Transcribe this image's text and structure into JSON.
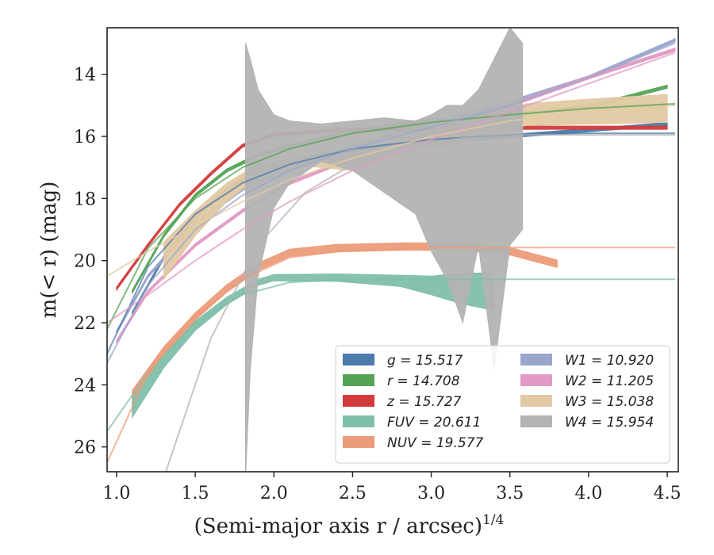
{
  "chart_data": {
    "type": "line",
    "xlabel": "(Semi-major axis r / arcsec)",
    "xlabel_sup": "1/4",
    "ylabel": "m(< r) (mag)",
    "xlim": [
      0.94,
      4.57
    ],
    "ylim": [
      12.5,
      26.8
    ],
    "y_inverted": true,
    "x_ticks": [
      {
        "value": 1.0,
        "label": "1.0"
      },
      {
        "value": 1.5,
        "label": "1.5"
      },
      {
        "value": 2.0,
        "label": "2.0"
      },
      {
        "value": 2.5,
        "label": "2.5"
      },
      {
        "value": 3.0,
        "label": "3.0"
      },
      {
        "value": 3.5,
        "label": "3.5"
      },
      {
        "value": 4.0,
        "label": "4.0"
      },
      {
        "value": 4.5,
        "label": "4.5"
      }
    ],
    "y_ticks": [
      {
        "value": 14,
        "label": "14"
      },
      {
        "value": 16,
        "label": "16"
      },
      {
        "value": 18,
        "label": "18"
      },
      {
        "value": 20,
        "label": "20"
      },
      {
        "value": 22,
        "label": "22"
      },
      {
        "value": 24,
        "label": "24"
      },
      {
        "value": 26,
        "label": "26"
      }
    ],
    "legend_position": "lower-right",
    "legend": [
      {
        "label": "g = 15.517",
        "color": "#4c7bab"
      },
      {
        "label": "r = 14.708",
        "color": "#55a455"
      },
      {
        "label": "z = 15.727",
        "color": "#d43c3c"
      },
      {
        "label": "FUV = 20.611",
        "color": "#7fbfaa"
      },
      {
        "label": "NUV = 19.577",
        "color": "#ec9c7a"
      },
      {
        "label": "W1 = 10.920",
        "color": "#99a7cc"
      },
      {
        "label": "W2 = 11.205",
        "color": "#e19ac4"
      },
      {
        "label": "W3 = 15.038",
        "color": "#e2c9a3"
      },
      {
        "label": "W4 = 15.954",
        "color": "#b3b3b3"
      }
    ],
    "series": [
      {
        "name": "g",
        "color": "#4c7bab",
        "band": true,
        "x": [
          1.1,
          1.3,
          1.5,
          1.7,
          1.9,
          2.1,
          2.4,
          2.8,
          3.2,
          3.6,
          4.0,
          4.5
        ],
        "y": [
          21.7,
          19.9,
          18.6,
          17.7,
          17.1,
          16.8,
          16.5,
          16.25,
          16.1,
          15.95,
          15.8,
          15.6
        ],
        "halfwidth": 0.05
      },
      {
        "name": "r",
        "color": "#55a455",
        "band": true,
        "x": [
          1.1,
          1.3,
          1.5,
          1.7,
          1.9,
          2.1,
          2.4,
          2.8,
          3.2,
          3.6,
          4.0,
          4.5
        ],
        "y": [
          21.0,
          19.2,
          17.9,
          17.1,
          16.6,
          16.3,
          15.95,
          15.6,
          15.4,
          15.25,
          15.05,
          14.4
        ],
        "halfwidth": 0.05
      },
      {
        "name": "z",
        "color": "#d43c3c",
        "band": true,
        "x": [
          1.0,
          1.2,
          1.4,
          1.6,
          1.8,
          2.0,
          2.4,
          3.0,
          3.6,
          4.0,
          4.5
        ],
        "y": [
          20.9,
          19.5,
          18.2,
          17.2,
          16.3,
          15.95,
          15.8,
          15.75,
          15.72,
          15.72,
          15.72
        ],
        "halfwidth": 0.05
      },
      {
        "name": "FUV",
        "color": "#7fbfaa",
        "band": true,
        "x": [
          1.1,
          1.3,
          1.5,
          1.7,
          1.9,
          2.0,
          2.4,
          2.8,
          3.0,
          3.2,
          3.4
        ],
        "y": [
          24.7,
          23.2,
          22.1,
          21.3,
          20.7,
          20.55,
          20.55,
          20.65,
          20.8,
          20.9,
          21.0
        ],
        "halfwidth": [
          0.35,
          0.25,
          0.15,
          0.12,
          0.1,
          0.1,
          0.12,
          0.18,
          0.3,
          0.5,
          0.6
        ]
      },
      {
        "name": "NUV",
        "color": "#ec9c7a",
        "band": true,
        "x": [
          1.1,
          1.3,
          1.5,
          1.7,
          1.9,
          2.1,
          2.4,
          2.8,
          3.2,
          3.5,
          3.8
        ],
        "y": [
          24.3,
          22.9,
          21.8,
          20.9,
          20.2,
          19.75,
          19.6,
          19.55,
          19.55,
          19.7,
          20.1
        ],
        "halfwidth": 0.12
      },
      {
        "name": "W1",
        "color": "#99a7cc",
        "band": true,
        "x": [
          1.0,
          1.2,
          1.5,
          1.8,
          2.1,
          2.5,
          3.0,
          3.5,
          4.0,
          4.55
        ],
        "y": [
          22.3,
          20.5,
          18.8,
          17.7,
          17.0,
          16.3,
          15.6,
          14.9,
          14.1,
          12.9
        ],
        "halfwidth": 0.05
      },
      {
        "name": "W2",
        "color": "#e19ac4",
        "band": true,
        "x": [
          1.0,
          1.2,
          1.5,
          1.8,
          2.1,
          2.5,
          3.0,
          3.5,
          4.0,
          4.55
        ],
        "y": [
          22.6,
          21.0,
          19.5,
          18.4,
          17.5,
          16.7,
          15.8,
          15.0,
          14.1,
          13.2
        ],
        "halfwidth": 0.05
      },
      {
        "name": "W3",
        "color": "#e2c9a3",
        "band": true,
        "x": [
          1.3,
          1.5,
          1.7,
          1.9,
          2.2,
          2.5,
          2.8,
          3.2,
          3.6,
          4.0,
          4.5
        ],
        "y": [
          20.0,
          18.8,
          17.8,
          17.1,
          16.8,
          16.9,
          16.3,
          15.9,
          15.3,
          15.2,
          15.1
        ],
        "halfwidth": [
          0.6,
          0.4,
          0.3,
          0.2,
          0.15,
          0.2,
          0.25,
          0.3,
          0.35,
          0.4,
          0.45
        ]
      },
      {
        "name": "W4",
        "color": "#b3b3b3",
        "band": true,
        "x": [
          1.82,
          1.85,
          1.9,
          2.0,
          2.1,
          2.3,
          2.5,
          2.7,
          2.9,
          3.0,
          3.1,
          3.2,
          3.3,
          3.4,
          3.5,
          3.58
        ],
        "y": [
          20.0,
          18.5,
          17.5,
          16.8,
          16.5,
          16.2,
          16.3,
          16.6,
          17.0,
          17.5,
          17.8,
          18.5,
          17.0,
          18.5,
          16.0,
          16.0
        ],
        "halfwidth": [
          7.0,
          5.0,
          3.0,
          1.5,
          1.0,
          0.6,
          0.8,
          1.2,
          1.5,
          2.2,
          2.8,
          3.5,
          2.5,
          5.0,
          3.5,
          3.0
        ]
      }
    ],
    "model_curves": [
      {
        "name": "g model",
        "color": "#4c7bab",
        "x": [
          0.94,
          1.2,
          1.5,
          1.8,
          2.1,
          2.5,
          3.0,
          3.5,
          4.0,
          4.55
        ],
        "y": [
          23.0,
          20.2,
          18.5,
          17.5,
          16.9,
          16.4,
          16.1,
          15.95,
          15.9,
          15.9
        ]
      },
      {
        "name": "r model",
        "color": "#55a455",
        "x": [
          0.94,
          1.2,
          1.5,
          1.8,
          2.1,
          2.5,
          3.0,
          3.5,
          4.0,
          4.55
        ],
        "y": [
          22.2,
          19.6,
          18.0,
          17.0,
          16.4,
          15.9,
          15.55,
          15.3,
          15.1,
          14.95
        ]
      },
      {
        "name": "FUV model",
        "color": "#7fbfaa",
        "x": [
          0.94,
          1.2,
          1.5,
          1.8,
          2.1,
          2.5,
          3.0,
          3.5,
          4.0,
          4.55
        ],
        "y": [
          25.5,
          23.6,
          22.0,
          21.1,
          20.7,
          20.6,
          20.6,
          20.6,
          20.6,
          20.6
        ]
      },
      {
        "name": "NUV model",
        "color": "#ec9c7a",
        "x": [
          0.94,
          1.2,
          1.5,
          1.8,
          2.1,
          2.5,
          3.0,
          3.5,
          4.0,
          4.55
        ],
        "y": [
          26.5,
          23.6,
          21.8,
          20.6,
          19.9,
          19.65,
          19.58,
          19.58,
          19.58,
          19.58
        ]
      },
      {
        "name": "W1 model",
        "color": "#99a7cc",
        "x": [
          0.94,
          1.2,
          1.5,
          1.8,
          2.1,
          2.5,
          3.0,
          3.5,
          4.0,
          4.55
        ],
        "y": [
          23.3,
          20.8,
          19.0,
          17.9,
          17.1,
          16.4,
          15.7,
          15.0,
          14.1,
          13.0
        ]
      },
      {
        "name": "W2 model",
        "color": "#e19ac4",
        "x": [
          0.94,
          1.2,
          1.5,
          1.8,
          2.1,
          2.5,
          3.0,
          3.5,
          4.0,
          4.55
        ],
        "y": [
          22.0,
          21.1,
          20.0,
          19.0,
          18.1,
          17.1,
          16.1,
          15.2,
          14.3,
          13.3
        ]
      },
      {
        "name": "W3 model",
        "color": "#e2c9a3",
        "x": [
          0.94,
          1.2,
          1.5,
          1.8,
          2.1,
          2.5,
          3.0,
          3.5,
          4.0,
          4.55
        ],
        "y": [
          20.5,
          19.7,
          18.9,
          18.1,
          17.4,
          16.7,
          16.0,
          15.5,
          15.2,
          15.0
        ]
      },
      {
        "name": "W4 model",
        "color": "#b3b3b3",
        "x": [
          1.3,
          1.6,
          1.9,
          2.2,
          2.5,
          2.8,
          3.0,
          3.2,
          3.5,
          4.0,
          4.55
        ],
        "y": [
          27.0,
          22.5,
          19.5,
          17.8,
          16.9,
          16.4,
          16.2,
          16.05,
          15.95,
          15.95,
          15.95
        ]
      }
    ]
  }
}
